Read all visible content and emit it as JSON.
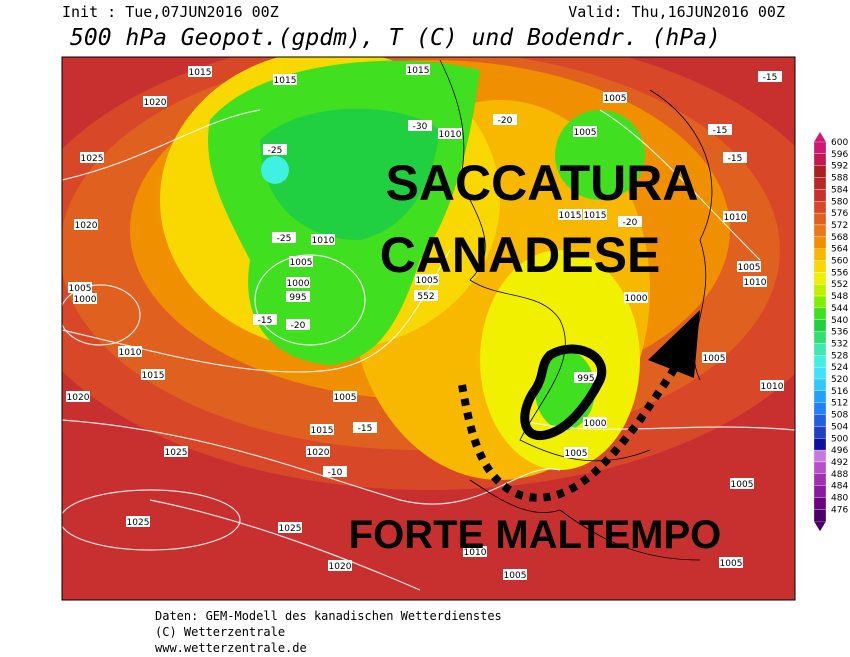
{
  "header": {
    "init": "Init : Tue,07JUN2016 00Z",
    "valid": "Valid: Thu,16JUN2016 00Z",
    "title": "500 hPa Geopot.(gpdm), T (C) und Bodendr. (hPa)"
  },
  "annotations": [
    "SACCATURA",
    "CANADESE",
    "FORTE MALTEMPO"
  ],
  "map_labels": [
    1015,
    1015,
    1015,
    1020,
    1025,
    1020,
    1005,
    1000,
    1010,
    1015,
    1020,
    1005,
    1000,
    995,
    1010,
    1005,
    1015,
    1020,
    1025,
    1025,
    1025,
    1020,
    1010,
    1005,
    1005,
    1005,
    1010,
    1005,
    1010,
    1005,
    1010,
    1015,
    1015,
    1005,
    1005,
    1000,
    995,
    1000,
    1005,
    1010,
    1005,
    -15,
    -15,
    -15,
    -20,
    -20,
    -25,
    -20,
    -15,
    -30,
    -25,
    -10,
    -15,
    552
  ],
  "colorbar": {
    "levels": [
      600,
      596,
      592,
      588,
      584,
      580,
      576,
      572,
      568,
      564,
      560,
      556,
      552,
      548,
      544,
      540,
      536,
      532,
      528,
      524,
      520,
      516,
      512,
      508,
      504,
      500,
      496,
      492,
      488,
      484,
      480,
      476
    ],
    "colors": [
      "#d01870",
      "#c01850",
      "#a82020",
      "#b82828",
      "#c83030",
      "#d84828",
      "#e06020",
      "#e87818",
      "#f09000",
      "#f8b800",
      "#f8d800",
      "#f0f000",
      "#c0f000",
      "#80f000",
      "#40e020",
      "#20d040",
      "#30e070",
      "#40e8b0",
      "#40f0e0",
      "#40e0ff",
      "#30c8ff",
      "#20a0ff",
      "#2080ff",
      "#2060e0",
      "#2040c0",
      "#1010a0",
      "#c878e0",
      "#b650c8",
      "#a030b0",
      "#8b1a9e",
      "#6a0080",
      "#4b0066"
    ]
  },
  "footer": [
    "Daten: GEM-Modell des kanadischen Wetterdienstes",
    "(C) Wetterzentrale",
    "www.wetterzentrale.de"
  ]
}
